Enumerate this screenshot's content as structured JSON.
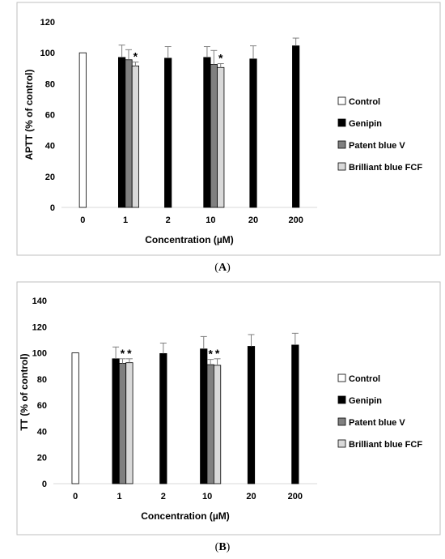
{
  "colors": {
    "control": "#ffffff",
    "genipin": "#000000",
    "patent_blue_v": "#808080",
    "brilliant_blue_fcf": "#d9d9d9",
    "axis": "#d9d9d9",
    "frame": "#bfbfbf",
    "error_bar": "#7f7f7f"
  },
  "chart_data": [
    {
      "type": "bar",
      "panel_label": "A",
      "ylabel": "APTT (% of control)",
      "xlabel": "Concentration (µM)",
      "ylim": [
        0,
        120
      ],
      "yticks": [
        0,
        20,
        40,
        60,
        80,
        100,
        120
      ],
      "grid": false,
      "legend_position": "right",
      "categories": [
        "0",
        "1",
        "2",
        "10",
        "20",
        "200"
      ],
      "series": [
        {
          "name": "Control",
          "color_key": "control",
          "values": [
            100,
            null,
            null,
            null,
            null,
            null
          ],
          "errors": [
            0,
            null,
            null,
            null,
            null,
            null
          ],
          "significant": [
            false,
            false,
            false,
            false,
            false,
            false
          ]
        },
        {
          "name": "Genipin",
          "color_key": "genipin",
          "values": [
            null,
            97,
            96.5,
            97,
            96,
            104.5
          ],
          "errors": [
            null,
            8,
            7.5,
            7,
            8.5,
            5
          ],
          "significant": [
            false,
            false,
            false,
            false,
            false,
            false
          ]
        },
        {
          "name": "Patent blue V",
          "color_key": "patent_blue_v",
          "values": [
            null,
            95.5,
            null,
            92.5,
            null,
            null
          ],
          "errors": [
            null,
            6.5,
            null,
            9,
            null,
            null
          ],
          "significant": [
            false,
            false,
            false,
            false,
            false,
            false
          ]
        },
        {
          "name": "Brilliant blue FCF",
          "color_key": "brilliant_blue_fcf",
          "values": [
            null,
            91.5,
            null,
            90.5,
            null,
            null
          ],
          "errors": [
            null,
            2.5,
            null,
            2.5,
            null,
            null
          ],
          "significant": [
            false,
            true,
            false,
            true,
            false,
            false
          ]
        }
      ]
    },
    {
      "type": "bar",
      "panel_label": "B",
      "ylabel": "TT (% of control)",
      "xlabel": "Concentration (µM)",
      "ylim": [
        0,
        140
      ],
      "yticks": [
        0,
        20,
        40,
        60,
        80,
        100,
        120,
        140
      ],
      "grid": false,
      "legend_position": "right",
      "categories": [
        "0",
        "1",
        "2",
        "10",
        "20",
        "200"
      ],
      "series": [
        {
          "name": "Control",
          "color_key": "control",
          "values": [
            100,
            null,
            null,
            null,
            null,
            null
          ],
          "errors": [
            0,
            null,
            null,
            null,
            null,
            null
          ],
          "significant": [
            false,
            false,
            false,
            false,
            false,
            false
          ]
        },
        {
          "name": "Genipin",
          "color_key": "genipin",
          "values": [
            null,
            95.5,
            99.5,
            103,
            105,
            106
          ],
          "errors": [
            null,
            9,
            8,
            9.5,
            9,
            9
          ],
          "significant": [
            false,
            false,
            false,
            false,
            false,
            false
          ]
        },
        {
          "name": "Patent blue V",
          "color_key": "patent_blue_v",
          "values": [
            null,
            92,
            null,
            91,
            null,
            null
          ],
          "errors": [
            null,
            3.5,
            null,
            4,
            null,
            null
          ],
          "significant": [
            false,
            true,
            false,
            true,
            false,
            false
          ]
        },
        {
          "name": "Brilliant blue FCF",
          "color_key": "brilliant_blue_fcf",
          "values": [
            null,
            92.5,
            null,
            90.5,
            null,
            null
          ],
          "errors": [
            null,
            3,
            null,
            5,
            null,
            null
          ],
          "significant": [
            false,
            true,
            false,
            true,
            false,
            false
          ]
        }
      ]
    }
  ],
  "significance_marker": "*"
}
